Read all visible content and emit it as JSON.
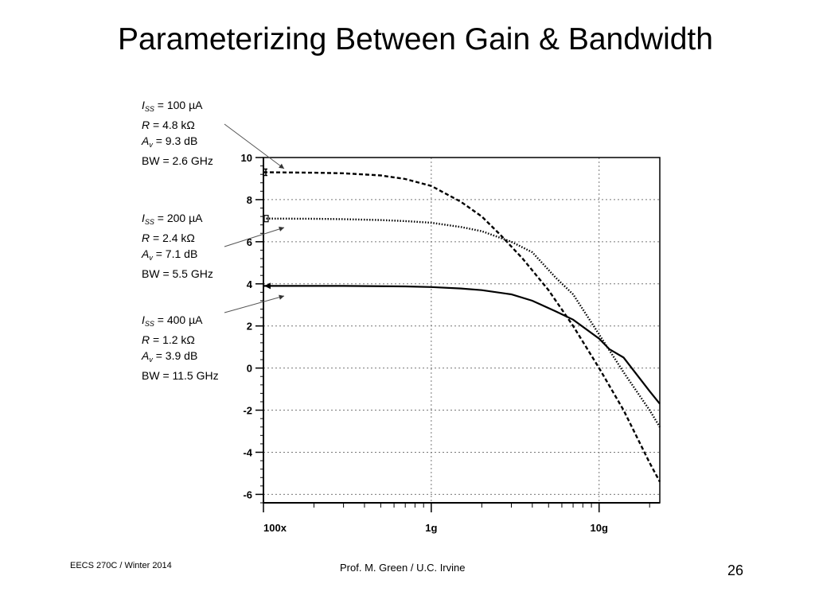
{
  "title": "Parameterizing Between Gain & Bandwidth",
  "annotations": [
    {
      "iss": "= 100 µA",
      "r": "= 4.8 kΩ",
      "av": "= 9.3 dB",
      "bw": "BW = 2.6 GHz"
    },
    {
      "iss": "= 200 µA",
      "r": "= 2.4 kΩ",
      "av": "= 7.1 dB",
      "bw": "BW = 5.5 GHz"
    },
    {
      "iss": "= 400 µA",
      "r": "= 1.2 kΩ",
      "av": "= 3.9 dB",
      "bw": "BW = 11.5 GHz"
    }
  ],
  "symbols": {
    "i": "I",
    "ss": "SS",
    "r": "R",
    "a": "A",
    "v": "v"
  },
  "footer": {
    "left": "EECS 270C / Winter 2014",
    "center": "Prof. M. Green / U.C. Irvine",
    "page": "26"
  },
  "chart_data": {
    "type": "line",
    "xscale": "log",
    "xlim": [
      100000000,
      23000000000
    ],
    "ylim": [
      -6.4,
      10
    ],
    "x_ticks": [
      {
        "value": 100000000,
        "label": "100x"
      },
      {
        "value": 1000000000,
        "label": "1g"
      },
      {
        "value": 10000000000,
        "label": "10g"
      }
    ],
    "y_ticks": [
      10,
      8,
      6,
      4,
      2,
      0,
      -2,
      -4,
      -6
    ],
    "grid": true,
    "series": [
      {
        "style": "dashed",
        "x": [
          100000000,
          200000000,
          300000000,
          500000000,
          700000000,
          1000000000,
          1500000000,
          2000000000,
          2600000000,
          3500000000,
          5000000000,
          7000000000,
          10000000000,
          14000000000,
          20000000000,
          23000000000
        ],
        "y": [
          9.3,
          9.28,
          9.25,
          9.15,
          8.98,
          8.65,
          7.9,
          7.2,
          6.3,
          5.2,
          3.7,
          2.0,
          0.0,
          -2.0,
          -4.5,
          -5.4
        ]
      },
      {
        "style": "dotted",
        "x": [
          100000000,
          200000000,
          300000000,
          500000000,
          700000000,
          1000000000,
          1500000000,
          2000000000,
          3000000000,
          4000000000,
          5500000000,
          7000000000,
          10000000000,
          14000000000,
          20000000000,
          23000000000
        ],
        "y": [
          7.1,
          7.09,
          7.07,
          7.03,
          6.98,
          6.9,
          6.7,
          6.5,
          6.0,
          5.5,
          4.3,
          3.5,
          1.6,
          -0.2,
          -2.0,
          -2.8
        ]
      },
      {
        "style": "solid",
        "x": [
          100000000,
          300000000,
          700000000,
          1000000000,
          1500000000,
          2000000000,
          3000000000,
          4000000000,
          5500000000,
          7000000000,
          10000000000,
          11500000000,
          14000000000,
          20000000000,
          23000000000
        ],
        "y": [
          3.9,
          3.9,
          3.88,
          3.85,
          3.78,
          3.7,
          3.5,
          3.2,
          2.7,
          2.3,
          1.4,
          0.9,
          0.5,
          -1.1,
          -1.7
        ]
      }
    ]
  }
}
